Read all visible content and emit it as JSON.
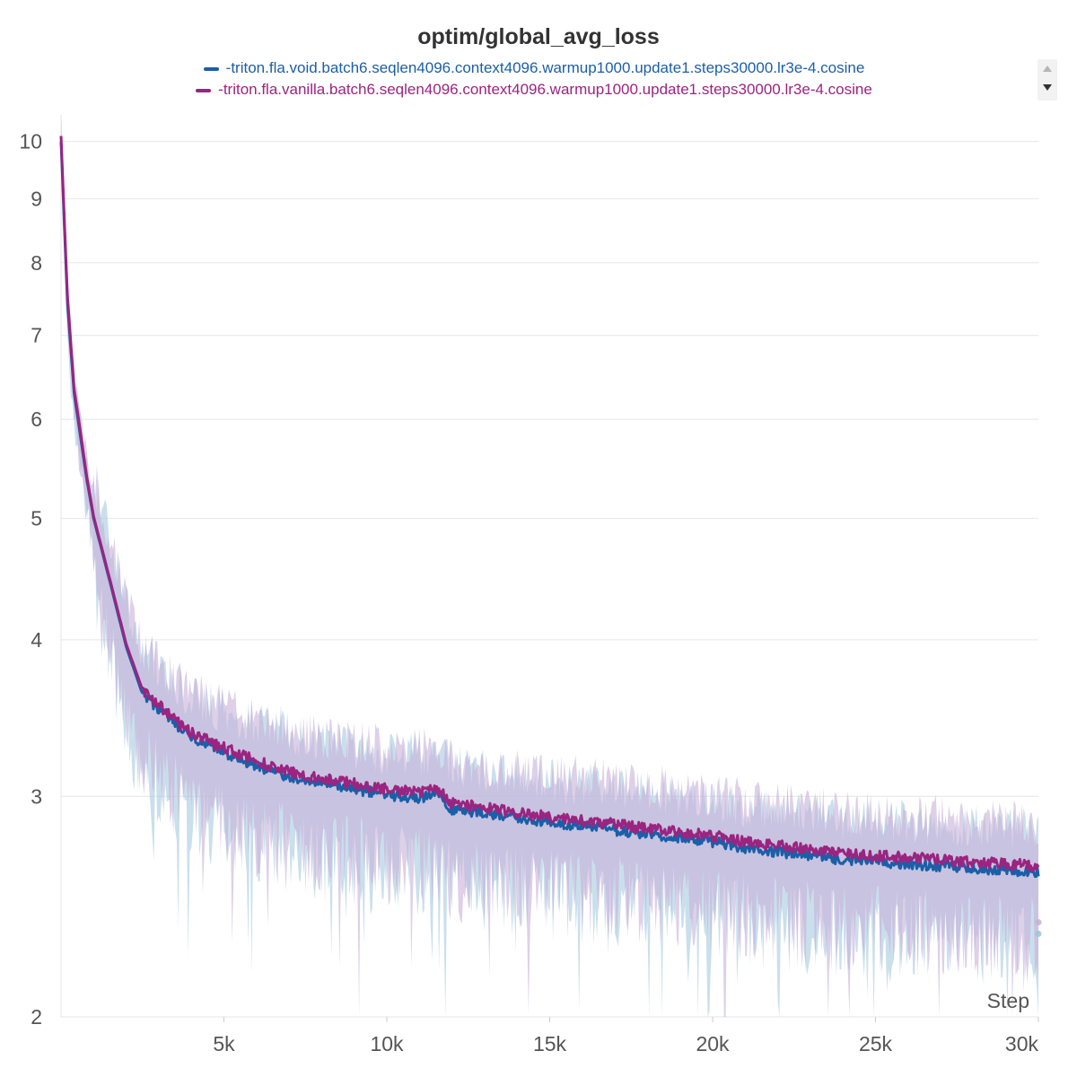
{
  "chart_data": {
    "type": "line",
    "title": "optim/global_avg_loss",
    "xlabel": "Step",
    "ylabel": "",
    "yscale": "log",
    "xlim": [
      0,
      30000
    ],
    "ylim": [
      2,
      10.5
    ],
    "x_ticks": [
      5000,
      10000,
      15000,
      20000,
      25000,
      30000
    ],
    "x_tick_labels": [
      "5k",
      "10k",
      "15k",
      "20k",
      "25k",
      "30k"
    ],
    "y_ticks": [
      2,
      3,
      4,
      5,
      6,
      7,
      8,
      9,
      10
    ],
    "y_tick_labels": [
      "2",
      "3",
      "4",
      "5",
      "6",
      "7",
      "8",
      "9",
      "10"
    ],
    "grid": true,
    "legend_position": "top-center",
    "series": [
      {
        "name": "-triton.fla.void.batch6.seqlen4096.context4096.warmup1000.update1.steps30000.lr3e-4.cosine",
        "color": "#1a5fa8",
        "raw_color": "#9ec5dc",
        "x": [
          0,
          200,
          400,
          600,
          800,
          1000,
          1500,
          2000,
          2500,
          3000,
          3500,
          4000,
          5000,
          6000,
          7000,
          8000,
          9000,
          10000,
          11000,
          11500,
          12000,
          13000,
          14000,
          15000,
          16000,
          17000,
          18000,
          19000,
          20000,
          21000,
          22000,
          23000,
          24000,
          25000,
          26000,
          27000,
          28000,
          29000,
          30000
        ],
        "values": [
          10.0,
          7.4,
          6.3,
          5.8,
          5.35,
          5.0,
          4.45,
          3.95,
          3.62,
          3.52,
          3.42,
          3.34,
          3.25,
          3.17,
          3.11,
          3.07,
          3.04,
          3.01,
          2.99,
          3.02,
          2.93,
          2.91,
          2.88,
          2.86,
          2.84,
          2.82,
          2.8,
          2.78,
          2.76,
          2.73,
          2.71,
          2.69,
          2.67,
          2.66,
          2.65,
          2.64,
          2.63,
          2.62,
          2.61
        ],
        "endpoint": 2.33
      },
      {
        "name": "-triton.fla.vanilla.batch6.seqlen4096.context4096.warmup1000.update1.steps30000.lr3e-4.cosine",
        "color": "#9b2480",
        "raw_color": "#c6b0d8",
        "x": [
          0,
          200,
          400,
          600,
          800,
          1000,
          1500,
          2000,
          2500,
          3000,
          3500,
          4000,
          5000,
          6000,
          7000,
          8000,
          9000,
          10000,
          11000,
          11500,
          12000,
          13000,
          14000,
          15000,
          16000,
          17000,
          18000,
          19000,
          20000,
          21000,
          22000,
          23000,
          24000,
          25000,
          26000,
          27000,
          28000,
          29000,
          30000
        ],
        "values": [
          10.1,
          7.5,
          6.35,
          5.85,
          5.38,
          5.02,
          4.47,
          3.97,
          3.65,
          3.55,
          3.45,
          3.37,
          3.28,
          3.2,
          3.14,
          3.1,
          3.07,
          3.04,
          3.02,
          3.05,
          2.96,
          2.94,
          2.91,
          2.89,
          2.87,
          2.85,
          2.83,
          2.81,
          2.79,
          2.76,
          2.74,
          2.72,
          2.7,
          2.69,
          2.68,
          2.67,
          2.66,
          2.65,
          2.64
        ],
        "endpoint": 2.38
      }
    ]
  }
}
